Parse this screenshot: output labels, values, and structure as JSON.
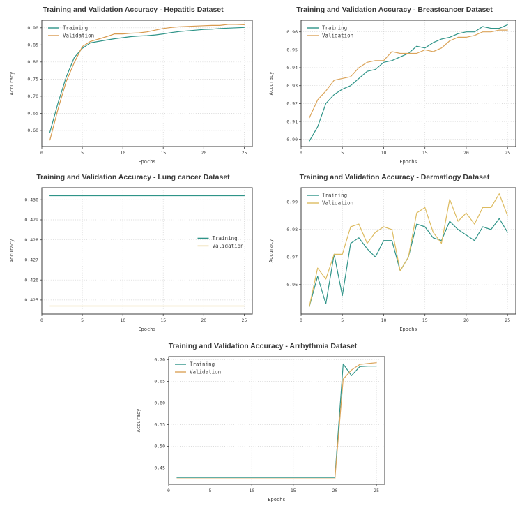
{
  "figure": {
    "background": "#ffffff",
    "title_color": "#3a3a3a",
    "text_color": "#3b3b3b",
    "grid_color": "#cfcfcf",
    "border_color": "#3c3c3c"
  },
  "chart_data": [
    {
      "type": "line",
      "title": "Training and Validation Accuracy - Hepatitis Dataset",
      "xlabel": "Epochs",
      "ylabel": "Accuracy",
      "legend_loc": "upper left",
      "grid": true,
      "xlim": [
        0,
        26
      ],
      "ylim": [
        0.553,
        0.922
      ],
      "xticks": [
        0,
        5,
        10,
        15,
        20,
        25
      ],
      "yticks": [
        0.6,
        0.65,
        0.7,
        0.75,
        0.8,
        0.85,
        0.9
      ],
      "ytick_labels": [
        "0.60",
        "0.65",
        "0.70",
        "0.75",
        "0.80",
        "0.85",
        "0.90"
      ],
      "x_values": [
        1,
        2,
        3,
        4,
        5,
        6,
        7,
        8,
        9,
        10,
        11,
        12,
        13,
        14,
        15,
        16,
        17,
        18,
        19,
        20,
        21,
        22,
        23,
        24,
        25
      ],
      "series": [
        {
          "name": "Training",
          "color": "#2f9488",
          "values": [
            0.595,
            0.68,
            0.755,
            0.813,
            0.84,
            0.856,
            0.86,
            0.864,
            0.868,
            0.871,
            0.874,
            0.876,
            0.877,
            0.879,
            0.882,
            0.886,
            0.889,
            0.891,
            0.893,
            0.895,
            0.896,
            0.898,
            0.899,
            0.9,
            0.901
          ]
        },
        {
          "name": "Validation",
          "color": "#d89a4f",
          "values": [
            0.572,
            0.662,
            0.742,
            0.798,
            0.845,
            0.86,
            0.867,
            0.874,
            0.882,
            0.882,
            0.884,
            0.885,
            0.888,
            0.893,
            0.898,
            0.901,
            0.903,
            0.904,
            0.905,
            0.906,
            0.907,
            0.907,
            0.91,
            0.91,
            0.909
          ]
        }
      ]
    },
    {
      "type": "line",
      "title": "Training and Validation Accuracy - Breastcancer Dataset",
      "xlabel": "Epochs",
      "ylabel": "Accuracy",
      "legend_loc": "upper left",
      "grid": true,
      "xlim": [
        0,
        26
      ],
      "ylim": [
        0.896,
        0.9665
      ],
      "xticks": [
        0,
        5,
        10,
        15,
        20,
        25
      ],
      "yticks": [
        0.9,
        0.91,
        0.92,
        0.93,
        0.94,
        0.95,
        0.96
      ],
      "ytick_labels": [
        "0.90",
        "0.91",
        "0.92",
        "0.93",
        "0.94",
        "0.95",
        "0.96"
      ],
      "x_values": [
        1,
        2,
        3,
        4,
        5,
        6,
        7,
        8,
        9,
        10,
        11,
        12,
        13,
        14,
        15,
        16,
        17,
        18,
        19,
        20,
        21,
        22,
        23,
        24,
        25
      ],
      "series": [
        {
          "name": "Training",
          "color": "#2f9488",
          "values": [
            0.899,
            0.907,
            0.92,
            0.925,
            0.928,
            0.93,
            0.934,
            0.938,
            0.939,
            0.943,
            0.944,
            0.946,
            0.948,
            0.952,
            0.951,
            0.954,
            0.956,
            0.957,
            0.959,
            0.96,
            0.96,
            0.963,
            0.962,
            0.962,
            0.964
          ]
        },
        {
          "name": "Validation",
          "color": "#dba45a",
          "values": [
            0.912,
            0.922,
            0.927,
            0.933,
            0.934,
            0.935,
            0.94,
            0.943,
            0.944,
            0.944,
            0.949,
            0.948,
            0.948,
            0.948,
            0.95,
            0.949,
            0.951,
            0.955,
            0.957,
            0.957,
            0.958,
            0.96,
            0.96,
            0.961,
            0.961
          ]
        }
      ]
    },
    {
      "type": "line",
      "title": "Training and Validation Accuracy - Lung cancer Dataset",
      "xlabel": "Epochs",
      "ylabel": "Accuracy",
      "legend_loc": "center right",
      "grid": true,
      "xlim": [
        0,
        26
      ],
      "ylim": [
        0.4243,
        0.4306
      ],
      "xticks": [
        0,
        5,
        10,
        15,
        20,
        25
      ],
      "yticks": [
        0.425,
        0.426,
        0.427,
        0.428,
        0.429,
        0.43
      ],
      "ytick_labels": [
        "0.425",
        "0.426",
        "0.427",
        "0.428",
        "0.429",
        "0.430"
      ],
      "x_values": [
        1,
        2,
        3,
        4,
        5,
        6,
        7,
        8,
        9,
        10,
        11,
        12,
        13,
        14,
        15,
        16,
        17,
        18,
        19,
        20,
        21,
        22,
        23,
        24,
        25
      ],
      "series": [
        {
          "name": "Training",
          "color": "#2f9488",
          "values": [
            0.4302,
            0.4302,
            0.4302,
            0.4302,
            0.4302,
            0.4302,
            0.4302,
            0.4302,
            0.4302,
            0.4302,
            0.4302,
            0.4302,
            0.4302,
            0.4302,
            0.4302,
            0.4302,
            0.4302,
            0.4302,
            0.4302,
            0.4302,
            0.4302,
            0.4302,
            0.4302,
            0.4302,
            0.4302
          ]
        },
        {
          "name": "Validation",
          "color": "#dec06c",
          "values": [
            0.4247,
            0.4247,
            0.4247,
            0.4247,
            0.4247,
            0.4247,
            0.4247,
            0.4247,
            0.4247,
            0.4247,
            0.4247,
            0.4247,
            0.4247,
            0.4247,
            0.4247,
            0.4247,
            0.4247,
            0.4247,
            0.4247,
            0.4247,
            0.4247,
            0.4247,
            0.4247,
            0.4247,
            0.4247
          ]
        }
      ]
    },
    {
      "type": "line",
      "title": "Training and Validation Accuracy - Dermatlogy Dataset",
      "xlabel": "Epochs",
      "ylabel": "Accuracy",
      "legend_loc": "upper left",
      "grid": true,
      "xlim": [
        0,
        26
      ],
      "ylim": [
        0.9493,
        0.9952
      ],
      "xticks": [
        0,
        5,
        10,
        15,
        20,
        25
      ],
      "yticks": [
        0.96,
        0.97,
        0.98,
        0.99
      ],
      "ytick_labels": [
        "0.96",
        "0.97",
        "0.98",
        "0.99"
      ],
      "x_values": [
        1,
        2,
        3,
        4,
        5,
        6,
        7,
        8,
        9,
        10,
        11,
        12,
        13,
        14,
        15,
        16,
        17,
        18,
        19,
        20,
        21,
        22,
        23,
        24,
        25
      ],
      "series": [
        {
          "name": "Training",
          "color": "#2f9488",
          "values": [
            0.952,
            0.963,
            0.953,
            0.971,
            0.956,
            0.975,
            0.977,
            0.973,
            0.97,
            0.976,
            0.976,
            0.965,
            0.97,
            0.982,
            0.981,
            0.977,
            0.976,
            0.983,
            0.98,
            0.978,
            0.976,
            0.981,
            0.98,
            0.984,
            0.979
          ]
        },
        {
          "name": "Validation",
          "color": "#ddbb60",
          "values": [
            0.952,
            0.966,
            0.962,
            0.971,
            0.971,
            0.981,
            0.982,
            0.975,
            0.979,
            0.981,
            0.98,
            0.965,
            0.97,
            0.986,
            0.988,
            0.979,
            0.975,
            0.991,
            0.983,
            0.986,
            0.982,
            0.988,
            0.988,
            0.993,
            0.985
          ]
        }
      ]
    },
    {
      "type": "line",
      "title": "Training and Validation Accuracy - Arrhythmia Dataset",
      "xlabel": "Epochs",
      "ylabel": "Accuracy",
      "legend_loc": "upper left",
      "grid": true,
      "xlim": [
        0,
        26
      ],
      "ylim": [
        0.412,
        0.707
      ],
      "xticks": [
        0,
        5,
        10,
        15,
        20,
        25
      ],
      "yticks": [
        0.45,
        0.5,
        0.55,
        0.6,
        0.65,
        0.7
      ],
      "ytick_labels": [
        "0.45",
        "0.50",
        "0.55",
        "0.60",
        "0.65",
        "0.70"
      ],
      "x_values": [
        1,
        2,
        3,
        4,
        5,
        6,
        7,
        8,
        9,
        10,
        11,
        12,
        13,
        14,
        15,
        16,
        17,
        18,
        19,
        20,
        21,
        22,
        23,
        24,
        25
      ],
      "series": [
        {
          "name": "Training",
          "color": "#2f9488",
          "values": [
            0.428,
            0.428,
            0.428,
            0.428,
            0.428,
            0.428,
            0.428,
            0.428,
            0.428,
            0.428,
            0.428,
            0.428,
            0.428,
            0.428,
            0.428,
            0.428,
            0.428,
            0.428,
            0.428,
            0.428,
            0.69,
            0.663,
            0.684,
            0.685,
            0.685
          ]
        },
        {
          "name": "Validation",
          "color": "#dba45a",
          "values": [
            0.4245,
            0.4245,
            0.4245,
            0.4245,
            0.4245,
            0.4245,
            0.4245,
            0.4245,
            0.4245,
            0.4245,
            0.4245,
            0.4245,
            0.4245,
            0.4245,
            0.4245,
            0.4245,
            0.4245,
            0.4245,
            0.4245,
            0.4245,
            0.655,
            0.676,
            0.689,
            0.691,
            0.693
          ]
        }
      ]
    }
  ]
}
